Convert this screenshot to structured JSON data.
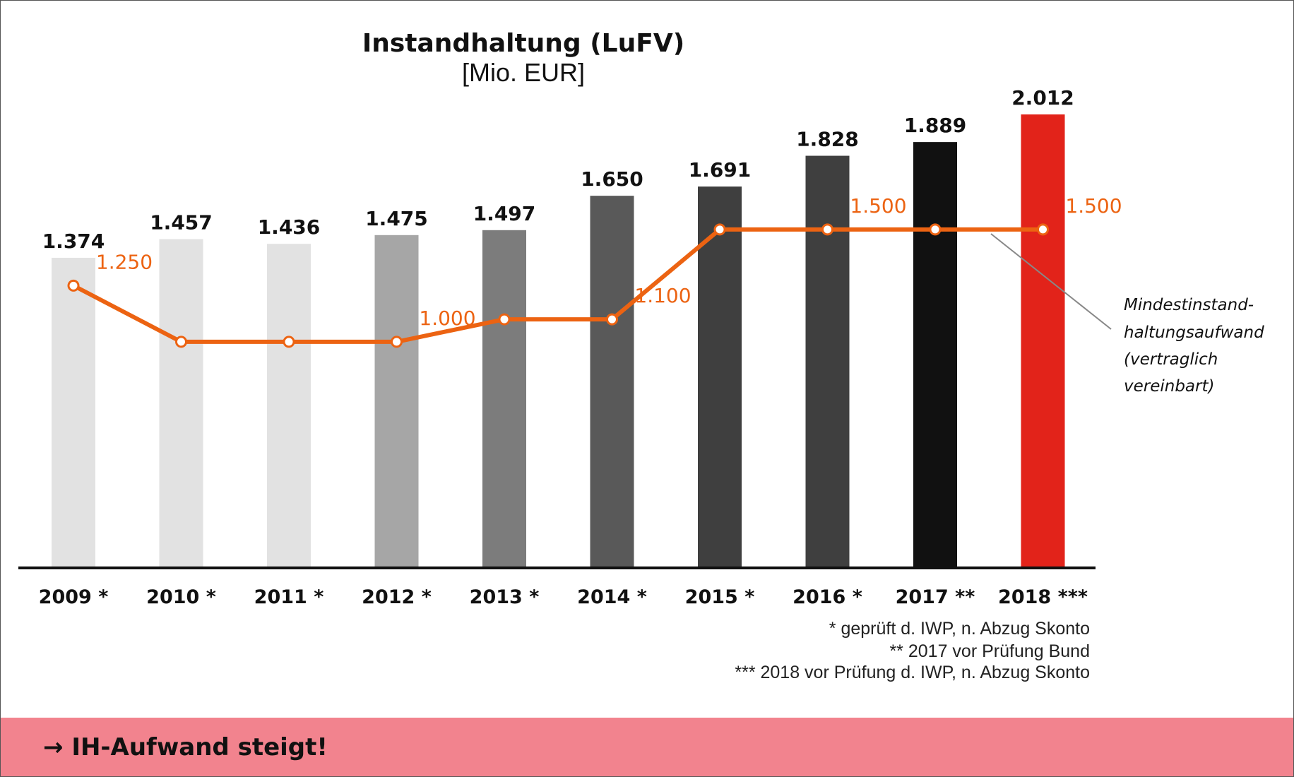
{
  "chart_data": {
    "type": "bar",
    "title": "Instandhaltung (LuFV)",
    "subtitle": "[Mio. EUR]",
    "categories": [
      "2009 *",
      "2010 *",
      "2011 *",
      "2012 *",
      "2013 *",
      "2014 *",
      "2015 *",
      "2016 *",
      "2017 **",
      "2018 ***"
    ],
    "series": [
      {
        "type": "bar",
        "values": [
          1374,
          1457,
          1436,
          1475,
          1497,
          1650,
          1691,
          1828,
          1889,
          2012
        ],
        "value_labels": [
          "1.374",
          "1.457",
          "1.436",
          "1.475",
          "1.497",
          "1.650",
          "1.691",
          "1.828",
          "1.889",
          "2.012"
        ],
        "colors": [
          "#e2e2e2",
          "#e2e2e2",
          "#e2e2e2",
          "#a6a6a6",
          "#7c7c7c",
          "#595959",
          "#3f3f3f",
          "#3f3f3f",
          "#111111",
          "#e2231a"
        ]
      },
      {
        "type": "line",
        "values": [
          1250,
          1000,
          1000,
          1000,
          1100,
          1100,
          1500,
          1500,
          1500,
          1500
        ],
        "point_labels": [
          "1.250",
          "",
          "",
          "1.000",
          "",
          "1.100",
          "",
          "1.500",
          "",
          "1.500"
        ],
        "color": "#ec6312"
      }
    ],
    "ylim": [
      0,
      2050
    ],
    "grid": false,
    "annotation": [
      "Mindestinstand-",
      "haltungsaufwand",
      "(vertraglich",
      "vereinbart)"
    ],
    "footnotes": [
      "* geprüft d. IWP, n. Abzug Skonto",
      "** 2017 vor Prüfung Bund",
      "*** 2018 vor Prüfung d. IWP, n. Abzug Skonto"
    ]
  },
  "banner": {
    "text": "→ IH-Aufwand steigt!",
    "color": "#f2838e"
  }
}
